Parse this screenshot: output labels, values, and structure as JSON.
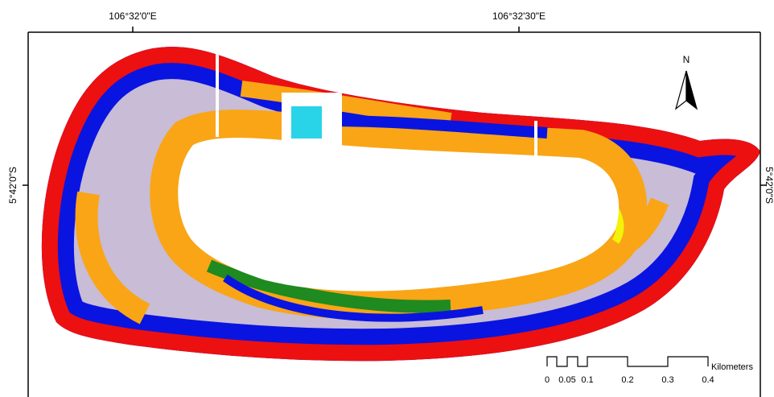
{
  "map": {
    "top_labels": [
      "106°32'0\"E",
      "106°32'30\"E"
    ],
    "left_label": "5°42'0\"S",
    "right_label": "5°42'0\"S",
    "north": "N",
    "scale_bar": {
      "labels": [
        "0",
        "0.05",
        "0.1",
        "0.2",
        "0.3",
        "0.4"
      ],
      "unit": "Kilometers"
    }
  }
}
